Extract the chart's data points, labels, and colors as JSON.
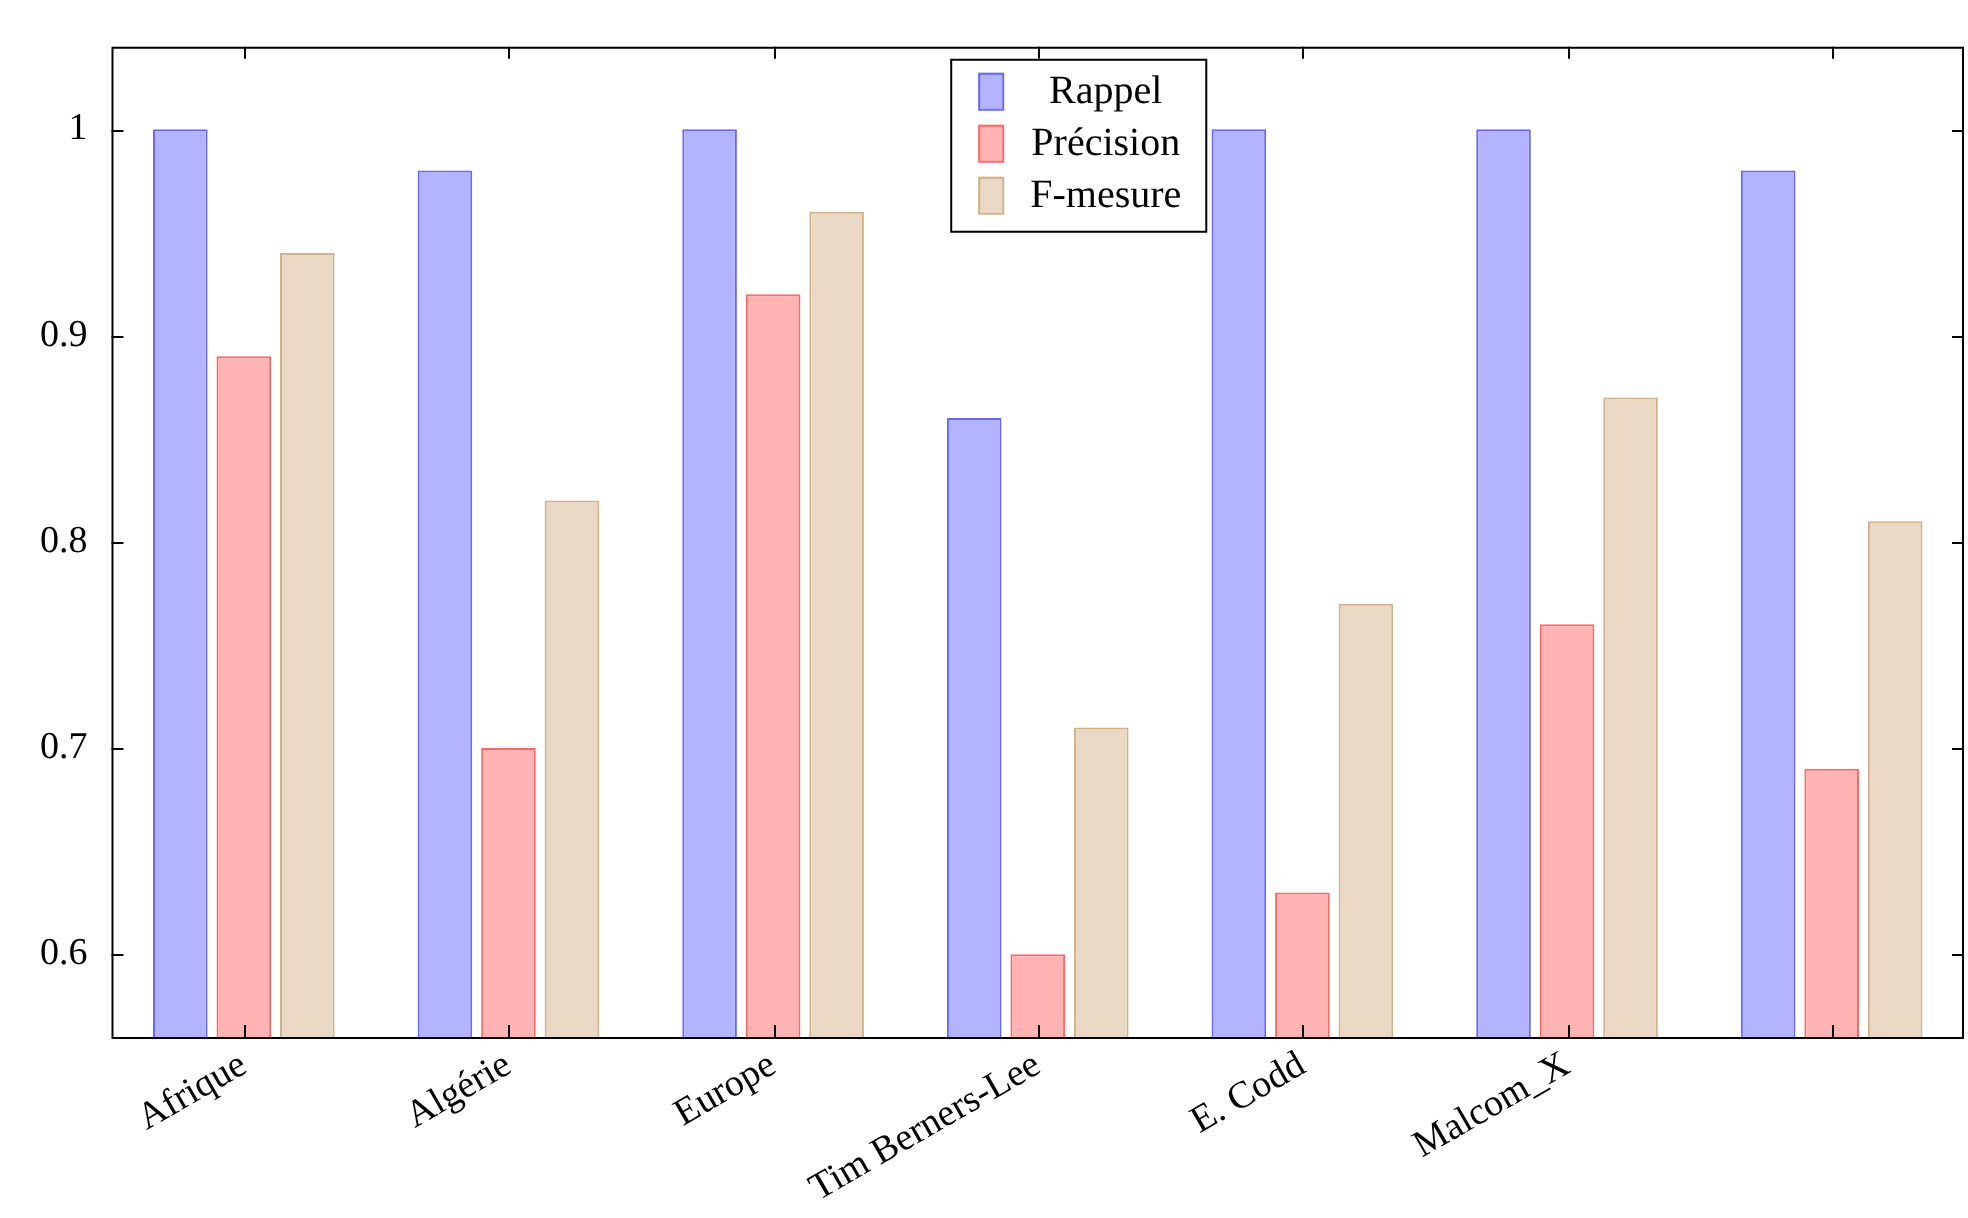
{
  "chart_data": {
    "type": "bar",
    "categories": [
      "Afrique",
      "Algérie",
      "Europe",
      "Tim Berners-Lee",
      "E. Codd",
      "Malcom_X",
      null
    ],
    "series": [
      {
        "name": "Rappel",
        "color": "#b3b3ff",
        "values": [
          1,
          0.98,
          1,
          0.86,
          1,
          1,
          0.98
        ]
      },
      {
        "name": "Précision",
        "color": "#ffb3b3",
        "values": [
          0.89,
          0.7,
          0.92,
          0.6,
          0.63,
          0.76,
          0.69
        ]
      },
      {
        "name": "F-mesure",
        "color": "#e8d8c4",
        "values": [
          0.94,
          0.82,
          0.96,
          0.71,
          0.77,
          0.87,
          0.81
        ]
      }
    ],
    "ylim": [
      0.56,
      1.04
    ],
    "yticks": [
      0.6,
      0.7,
      0.8,
      0.9,
      1
    ],
    "grid": false,
    "legend": "top"
  }
}
